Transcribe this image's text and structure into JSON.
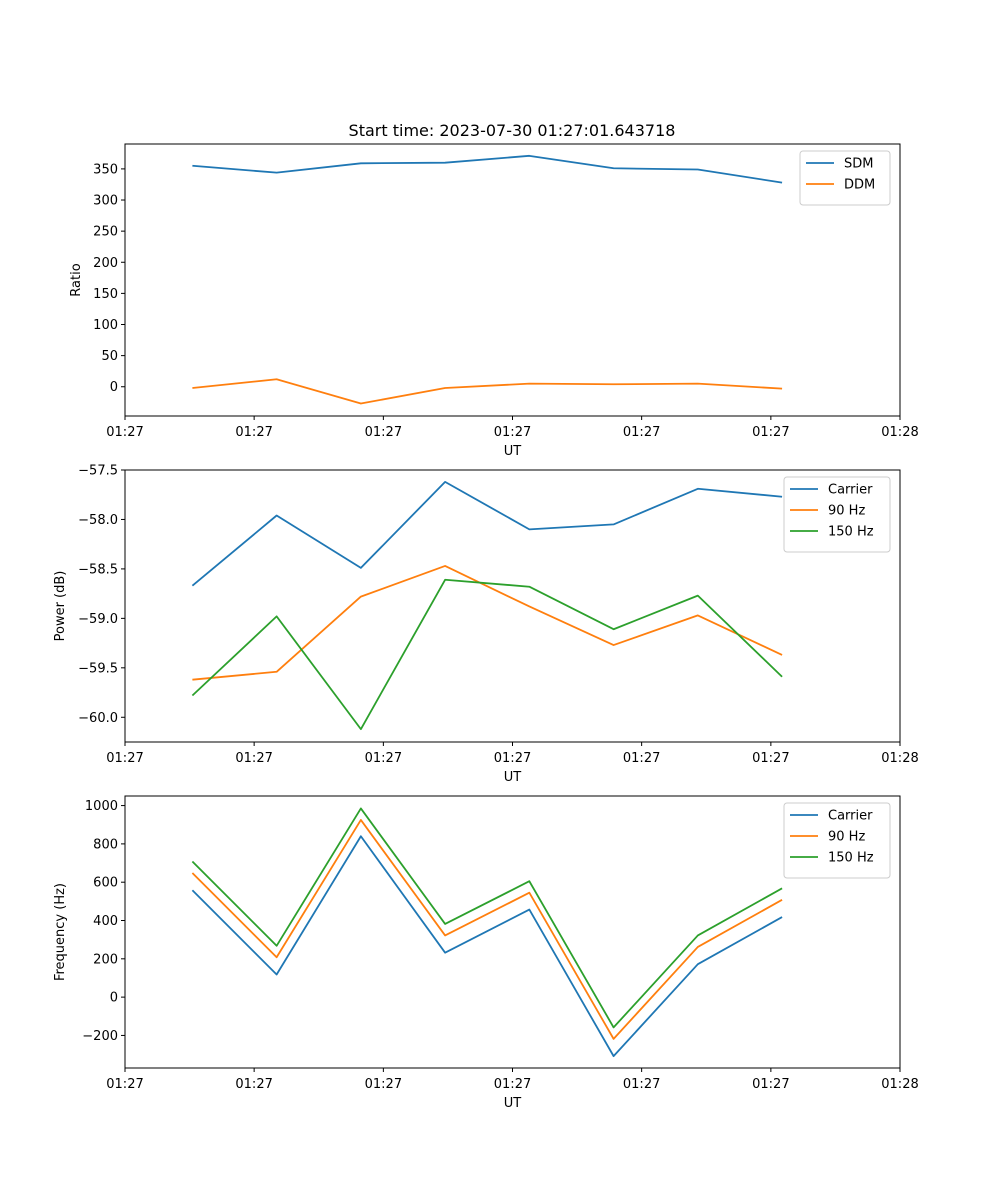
{
  "figure": {
    "title": "Start time: 2023-07-30 01:27:01.643718"
  },
  "chart_data": [
    {
      "type": "line",
      "title": "Start time: 2023-07-30 01:27:01.643718",
      "xlabel": "UT",
      "ylabel": "Ratio",
      "x": [
        1,
        2,
        3,
        4,
        5,
        6,
        7,
        8
      ],
      "xlim": [
        0.2,
        9.4
      ],
      "xticks": [
        0.2,
        1.733,
        3.267,
        4.8,
        6.333,
        7.867,
        9.4
      ],
      "xtick_labels": [
        "01:27",
        "01:27",
        "01:27",
        "01:27",
        "01:27",
        "01:27",
        "01:28"
      ],
      "ylim": [
        -47,
        390
      ],
      "yticks": [
        0,
        50,
        100,
        150,
        200,
        250,
        300,
        350
      ],
      "ytick_labels": [
        "0",
        "50",
        "100",
        "150",
        "200",
        "250",
        "300",
        "350"
      ],
      "legend": "top-right",
      "grid": false,
      "series": [
        {
          "name": "SDM",
          "color": "#1f77b4",
          "values": [
            355,
            344,
            359,
            360,
            371,
            351,
            349,
            328
          ]
        },
        {
          "name": "DDM",
          "color": "#ff7f0e",
          "values": [
            -2,
            12,
            -27,
            -2,
            5,
            4,
            5,
            -3
          ]
        }
      ]
    },
    {
      "type": "line",
      "title": "",
      "xlabel": "UT",
      "ylabel": "Power (dB)",
      "x": [
        1,
        2,
        3,
        4,
        5,
        6,
        7,
        8
      ],
      "xlim": [
        0.2,
        9.4
      ],
      "xticks": [
        0.2,
        1.733,
        3.267,
        4.8,
        6.333,
        7.867,
        9.4
      ],
      "xtick_labels": [
        "01:27",
        "01:27",
        "01:27",
        "01:27",
        "01:27",
        "01:27",
        "01:28"
      ],
      "ylim": [
        -60.25,
        -57.5
      ],
      "yticks": [
        -60.0,
        -59.5,
        -59.0,
        -58.5,
        -58.0,
        -57.5
      ],
      "ytick_labels": [
        "−60.0",
        "−59.5",
        "−59.0",
        "−58.5",
        "−58.0",
        "−57.5"
      ],
      "legend": "top-right",
      "grid": false,
      "series": [
        {
          "name": "Carrier",
          "color": "#1f77b4",
          "values": [
            -58.67,
            -57.96,
            -58.49,
            -57.62,
            -58.1,
            -58.05,
            -57.69,
            -57.77
          ]
        },
        {
          "name": "90 Hz",
          "color": "#ff7f0e",
          "values": [
            -59.62,
            -59.54,
            -58.78,
            -58.47,
            -58.88,
            -59.27,
            -58.97,
            -59.37
          ]
        },
        {
          "name": "150 Hz",
          "color": "#2ca02c",
          "values": [
            -59.78,
            -58.98,
            -60.12,
            -58.61,
            -58.68,
            -59.11,
            -58.77,
            -59.59
          ]
        }
      ]
    },
    {
      "type": "line",
      "title": "",
      "xlabel": "UT",
      "ylabel": "Frequency (Hz)",
      "x": [
        1,
        2,
        3,
        4,
        5,
        6,
        7,
        8
      ],
      "xlim": [
        0.2,
        9.4
      ],
      "xticks": [
        0.2,
        1.733,
        3.267,
        4.8,
        6.333,
        7.867,
        9.4
      ],
      "xtick_labels": [
        "01:27",
        "01:27",
        "01:27",
        "01:27",
        "01:27",
        "01:27",
        "01:28"
      ],
      "ylim": [
        -370,
        1050
      ],
      "yticks": [
        -200,
        0,
        200,
        400,
        600,
        800,
        1000
      ],
      "ytick_labels": [
        "−200",
        "0",
        "200",
        "400",
        "600",
        "800",
        "1000"
      ],
      "legend": "top-right",
      "grid": false,
      "series": [
        {
          "name": "Carrier",
          "color": "#1f77b4",
          "values": [
            558,
            118,
            840,
            232,
            457,
            -308,
            172,
            418
          ]
        },
        {
          "name": "90 Hz",
          "color": "#ff7f0e",
          "values": [
            648,
            208,
            925,
            322,
            545,
            -218,
            262,
            508
          ]
        },
        {
          "name": "150 Hz",
          "color": "#2ca02c",
          "values": [
            708,
            268,
            985,
            382,
            605,
            -158,
            322,
            568
          ]
        }
      ]
    }
  ]
}
